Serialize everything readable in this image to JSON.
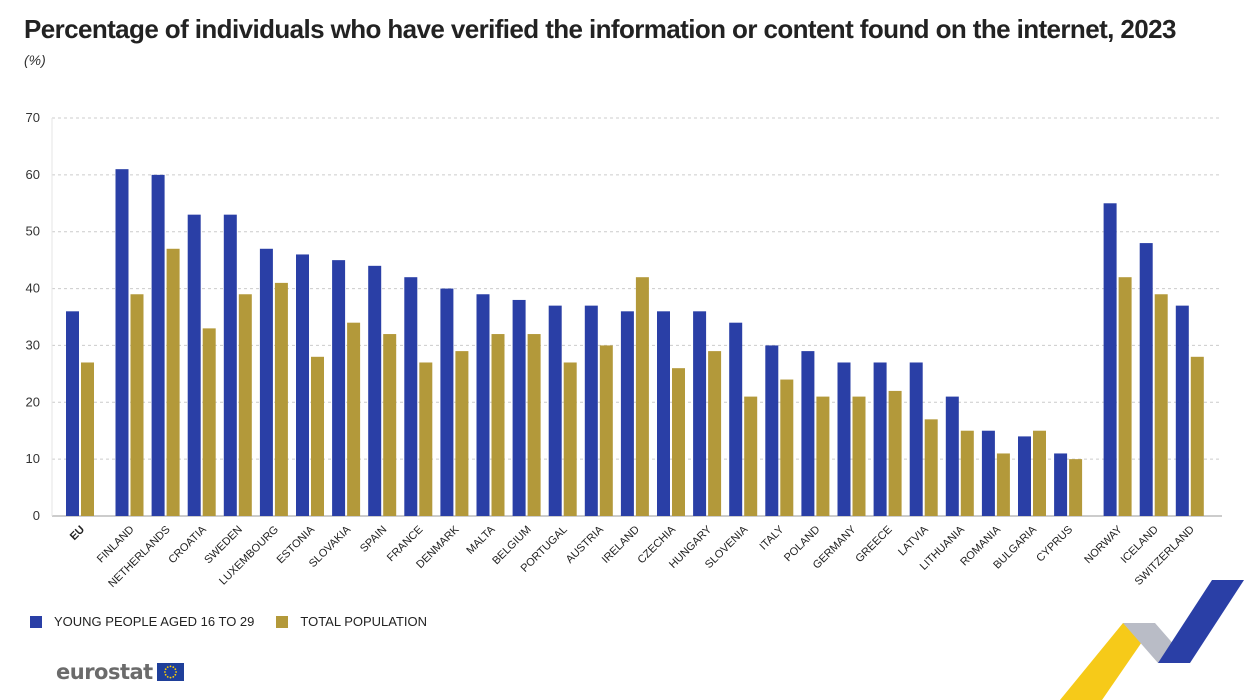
{
  "title": "Percentage of individuals who have verified the information or content found on the internet, 2023",
  "unit": "(%)",
  "logo": {
    "text": "eurostat",
    "icon": "eu-flag-icon"
  },
  "colors": {
    "young": "#2a3fa6",
    "total": "#b3993a",
    "grid": "#cccccc",
    "axis": "#999999"
  },
  "chart_data": {
    "type": "bar",
    "title": "Percentage of individuals who have verified the information or content found on the internet, 2023",
    "ylim": [
      0,
      70
    ],
    "yticks": [
      0,
      10,
      20,
      30,
      40,
      50,
      60,
      70
    ],
    "grid": true,
    "legend_position": "bottom-left",
    "categories": [
      "EU",
      "FINLAND",
      "NETHERLANDS",
      "CROATIA",
      "SWEDEN",
      "LUXEMBOURG",
      "ESTONIA",
      "SLOVAKIA",
      "SPAIN",
      "FRANCE",
      "DENMARK",
      "MALTA",
      "BELGIUM",
      "PORTUGAL",
      "AUSTRIA",
      "IRELAND",
      "CZECHIA",
      "HUNGARY",
      "SLOVENIA",
      "ITALY",
      "POLAND",
      "GERMANY",
      "GREECE",
      "LATVIA",
      "LITHUANIA",
      "ROMANIA",
      "BULGARIA",
      "CYPRUS",
      "NORWAY",
      "ICELAND",
      "SWITZERLAND"
    ],
    "series": [
      {
        "name": "YOUNG PEOPLE AGED 16 TO 29",
        "color": "#2a3fa6",
        "values": [
          36,
          61,
          60,
          53,
          53,
          47,
          46,
          45,
          44,
          42,
          40,
          39,
          38,
          37,
          37,
          36,
          36,
          36,
          34,
          30,
          29,
          27,
          27,
          27,
          21,
          15,
          14,
          11,
          55,
          48,
          37
        ]
      },
      {
        "name": "TOTAL POPULATION",
        "color": "#b3993a",
        "values": [
          27,
          39,
          47,
          33,
          39,
          41,
          28,
          34,
          32,
          27,
          29,
          32,
          32,
          27,
          30,
          42,
          26,
          29,
          21,
          24,
          21,
          21,
          22,
          17,
          15,
          11,
          15,
          10,
          42,
          39,
          28
        ]
      }
    ]
  }
}
